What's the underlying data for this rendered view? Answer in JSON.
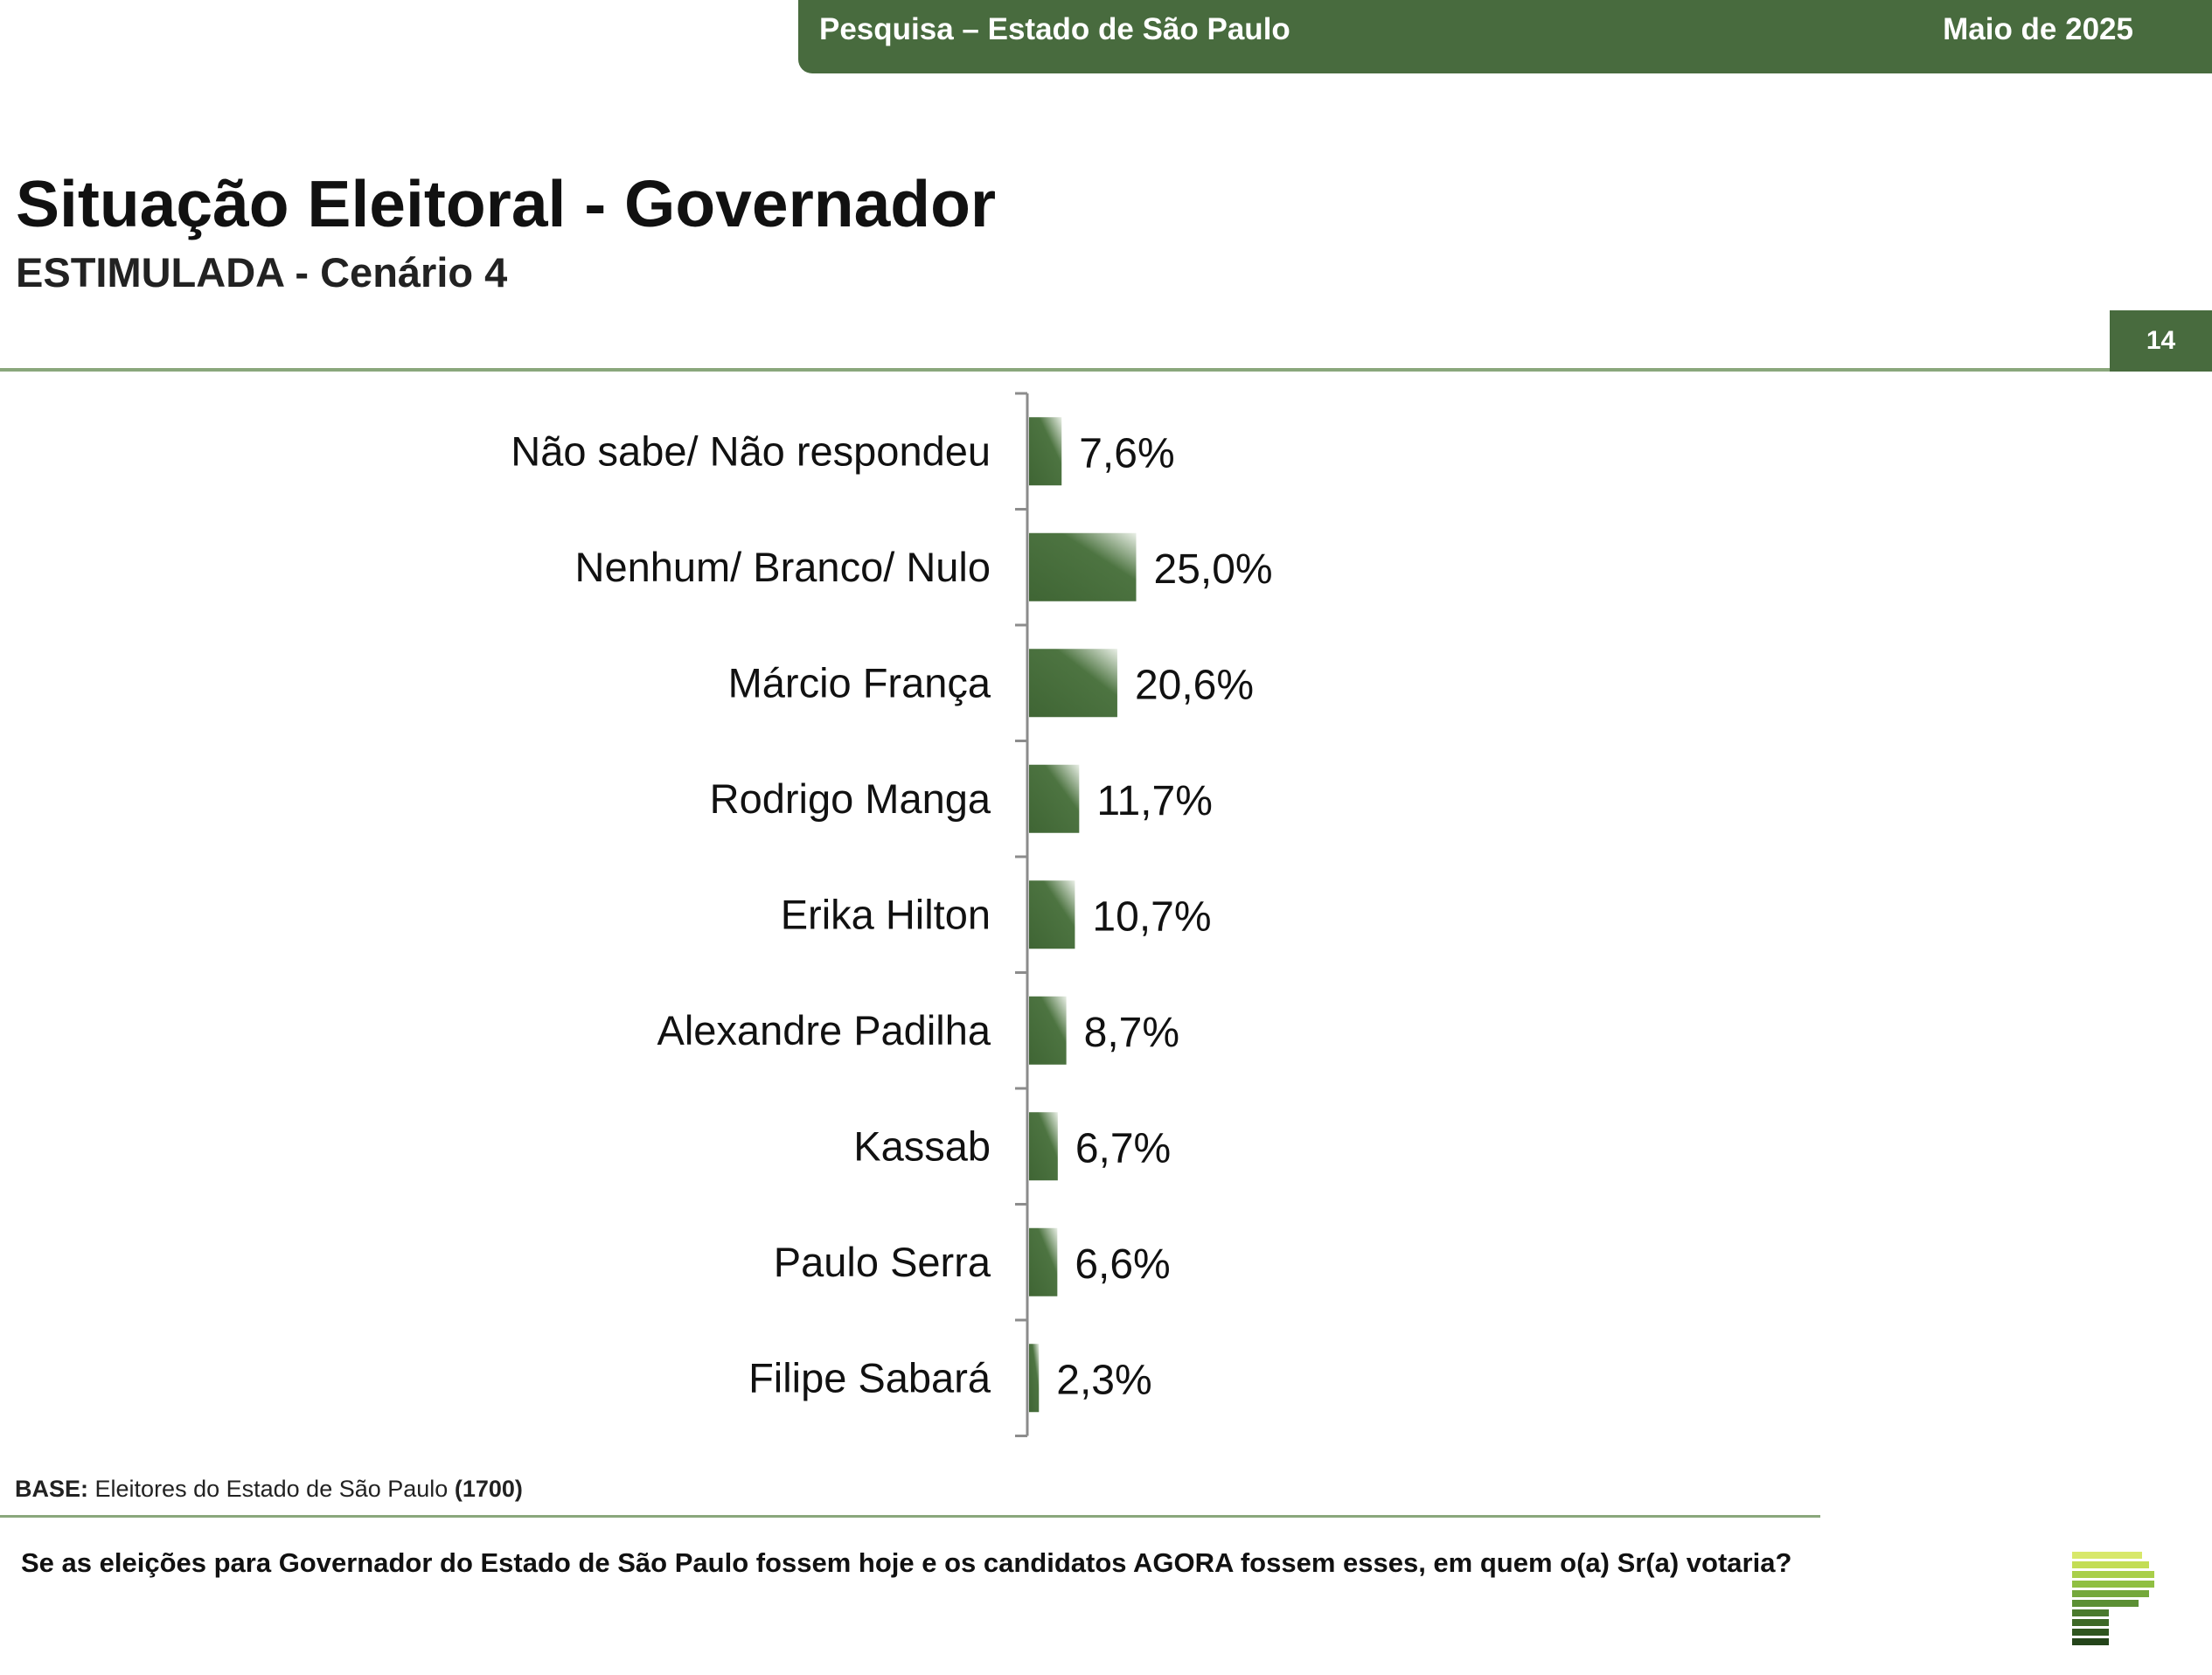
{
  "header": {
    "survey": "Pesquisa – Estado de São Paulo",
    "date": "Maio de 2025"
  },
  "title": "Situação Eleitoral - Governador",
  "subtitle": "ESTIMULADA - Cenário 4",
  "page_number": "14",
  "footer": {
    "base_label": "BASE:",
    "base_text": "Eleitores do Estado de São Paulo",
    "base_count": "(1700)",
    "question": "Se as eleições para Governador do Estado de São Paulo fossem hoje e os candidatos AGORA fossem esses, em quem o(a) Sr(a) votaria?"
  },
  "colors": {
    "accent": "#486b3e",
    "bar": "#3f6534",
    "bar_light": "#e9efe6",
    "rule": "#8aa77c"
  },
  "chart_data": {
    "type": "bar",
    "orientation": "horizontal",
    "categories": [
      "Não sabe/ Não respondeu",
      "Nenhum/ Branco/ Nulo",
      "Márcio França",
      "Rodrigo Manga",
      "Erika Hilton",
      "Alexandre Padilha",
      "Kassab",
      "Paulo Serra",
      "Filipe Sabará"
    ],
    "values": [
      7.6,
      25.0,
      20.6,
      11.7,
      10.7,
      8.7,
      6.7,
      6.6,
      2.3
    ],
    "value_labels": [
      "7,6%",
      "25,0%",
      "20,6%",
      "11,7%",
      "10,7%",
      "8,7%",
      "6,7%",
      "6,6%",
      "2,3%"
    ],
    "unit": "%",
    "grid": false,
    "legend": "none"
  }
}
